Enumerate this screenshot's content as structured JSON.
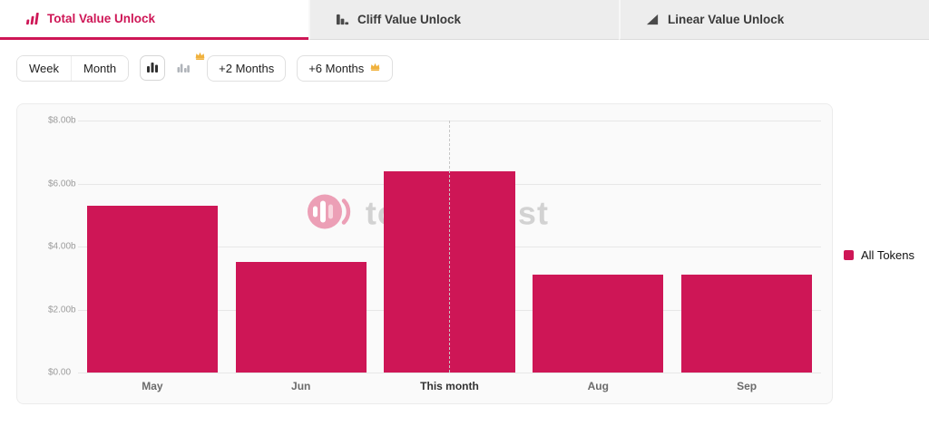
{
  "colors": {
    "accent": "#ce1656"
  },
  "tabs": [
    {
      "label": "Total Value Unlock",
      "active": true
    },
    {
      "label": "Cliff Value Unlock",
      "active": false
    },
    {
      "label": "Linear Value Unlock",
      "active": false
    }
  ],
  "toolbar": {
    "week_label": "Week",
    "month_label": "Month",
    "chart_type_icons": [
      "bar-chart-icon",
      "grouped-bar-chart-icon"
    ],
    "premium_icon": "crown-icon",
    "plus2_label": "+2 Months",
    "plus6_label": "+6 Months"
  },
  "legend": {
    "label": "All Tokens",
    "color": "#ce1656"
  },
  "watermark": {
    "text": "tokenomist",
    "logo": "tokenomist-logo-icon"
  },
  "chart_data": {
    "type": "bar",
    "categories": [
      "May",
      "Jun",
      "This month",
      "Aug",
      "Sep"
    ],
    "values": [
      5.3,
      3.5,
      6.4,
      3.1,
      3.1
    ],
    "unit": "billion USD",
    "title": "",
    "xlabel": "",
    "ylabel": "",
    "ylim": [
      0,
      8
    ],
    "yticks": [
      "$8.00b",
      "$6.00b",
      "$4.00b",
      "$2.00b",
      "$0.00"
    ],
    "bar_color": "#ce1656",
    "highlight_category": "This month",
    "grid": true,
    "legend_position": "top-right"
  }
}
